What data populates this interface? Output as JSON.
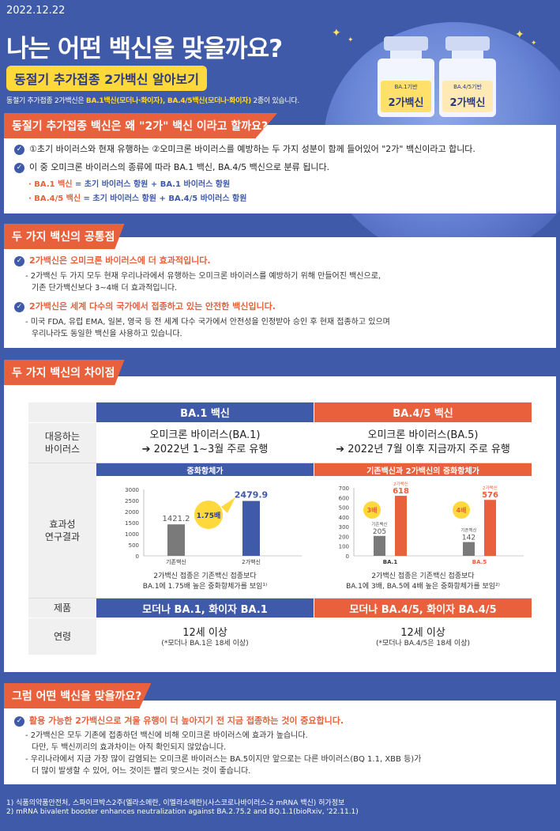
{
  "header": {
    "date": "2022.12.22",
    "title": "나는 어떤 백신을 맞을까요?",
    "subtitle": "동절기 추가접종 2가백신 알아보기",
    "intro_pre": "동절기 추가접종 2가백신은 ",
    "intro_hl1": "BA.1백신(모더나·화이자), BA.4/5백신(모더나·화이자)",
    "intro_post": " 2종이 있습니다.",
    "vial1": {
      "small": "BA.1기반",
      "big": "2가백신"
    },
    "vial2": {
      "small": "BA.4/5기반",
      "big": "2가백신"
    }
  },
  "sec1": {
    "title": "동절기 추가접종 백신은 왜 \"2가\" 백신 이라고 할까요?",
    "line1": "①초기 바이러스와 현재 유행하는 ②오미크론 바이러스를 예방하는 두 가지 성분이 함께 들어있어 \"2가\" 백신이라고 합니다.",
    "line2": "이 중 오미크론 바이러스의 종류에 따라 BA.1 백신, BA.4/5 백신으로 분류 됩니다.",
    "sub1_name": "· BA.1 백신",
    "sub1_eq": " = 초기 바이러스 항원 + BA.1 바이러스 항원",
    "sub2_name": "· BA.4/5 백신",
    "sub2_eq": " = 초기 바이러스 항원 + BA.4/5 바이러스 항원"
  },
  "sec2": {
    "title": "두 가지 백신의 공통점",
    "p1_head": "2가백신은 오미크론 바이러스에 더 효과적입니다.",
    "p1_l1": "- 2가백신 두 가지 모두 현재 우리나라에서 유행하는 오미크론 바이러스를 예방하기 위해 만들어진 백신으로,",
    "p1_l2": "기존 단가백신보다 3~4배 더 효과적입니다.",
    "p2_head": "2가백신은 세계 다수의 국가에서 접종하고 있는 안전한 백신입니다.",
    "p2_l1": "- 미국 FDA, 유럽 EMA, 일본, 영국 등 전 세계 다수 국가에서 안전성을 인정받아 승인 후 현재 접종하고 있으며",
    "p2_l2": "우리나라도 동일한 백신을 사용하고 있습니다."
  },
  "sec3": {
    "title": "두 가지 백신의 차이점",
    "col1": "BA.1 백신",
    "col2": "BA.4/5 백신",
    "row_virus": "대응하는\n바이러스",
    "virus1_a": "오미크론 바이러스(BA.1)",
    "virus1_b": "➔ 2022년 1~3월 주로 유행",
    "virus2_a": "오미크론 바이러스(BA.5)",
    "virus2_b": "➔ 2022년 7월 이후 지금까지 주로 유행",
    "row_eff": "효과성\n연구결과",
    "chart1_title": "중화항체가",
    "chart2_title": "기존백신과 2가백신의 중화항체가",
    "note1_a": "2가백신 접종은 기존백신 접종보다",
    "note1_b": "BA.1에 1.75배 높은 중화항체가를 보임¹⁾",
    "note2_a": "2가백신 접종은 기존백신 접종보다",
    "note2_b": "BA.1에 3배, BA.5에 4배 높은 중화항체가를 보임²⁾",
    "row_product": "제품",
    "product1": "모더나 BA.1, 화이자 BA.1",
    "product2": "모더나 BA.4/5, 화이자 BA.4/5",
    "row_age": "연령",
    "age1_a": "12세 이상",
    "age1_b": "(*모더나 BA.1은 18세 이상)",
    "age2_a": "12세 이상",
    "age2_b": "(*모더나 BA.4/5은 18세 이상)"
  },
  "sec4": {
    "title": "그럼 어떤 백신을 맞을까요?",
    "head": "활용 가능한 2가백신으로 겨울 유행이 더 높아지기 전 지금 접종하는 것이 중요합니다.",
    "l1": "- 2가백신은 모두 기존에 접종하던 백신에 비해 오미크론 바이러스에 효과가 높습니다.",
    "l2": "다만, 두 백신끼리의 효과차이는 아직 확인되지 않았습니다.",
    "l3": "- 우리나라에서 지금 가장 많이 감염되는 오미크론 바이러스는 BA.5이지만 앞으로는 다른 바이러스(BQ 1.1, XBB 등)가",
    "l4": "더 많이 발생할 수 있어, 어느 것이든 빨리 맞으시는 것이 좋습니다."
  },
  "footnotes": {
    "f1": "1) 식품의약품안전처, 스파이크박스2주(엘라소메란, 이멜라소메란)(사스코로나바이러스-2 mRNA 백신) 허가정보",
    "f2": "2) mRNA bivalent booster enhances neutralization against BA.2.75.2 and BQ.1.1(bioRxiv, '22.11.1)"
  },
  "colors": {
    "blue": "#3f5aa8",
    "orange": "#e8603c",
    "yellow": "#ffd83b",
    "gray_bar": "#7a7a7a"
  },
  "chart_data": [
    {
      "type": "bar",
      "title": "중화항체가",
      "categories": [
        "기존백신",
        "2가백신"
      ],
      "values": [
        1421.2,
        2479.9
      ],
      "ylim": [
        0,
        3000
      ],
      "yticks": [
        "0",
        "500",
        "1000",
        "1500",
        "2000",
        "2500",
        "3000"
      ],
      "annotation": "1.75배"
    },
    {
      "type": "bar",
      "title": "기존백신과 2가백신의 중화항체가",
      "categories": [
        "BA.1",
        "BA.5"
      ],
      "series": [
        {
          "name": "기존백신",
          "values": [
            205,
            142
          ]
        },
        {
          "name": "2가백신",
          "values": [
            618,
            576
          ]
        }
      ],
      "ylim": [
        0,
        700
      ],
      "yticks": [
        "0",
        "100",
        "200",
        "300",
        "400",
        "500",
        "600",
        "700"
      ],
      "annotations": [
        "3배",
        "4배"
      ]
    }
  ]
}
